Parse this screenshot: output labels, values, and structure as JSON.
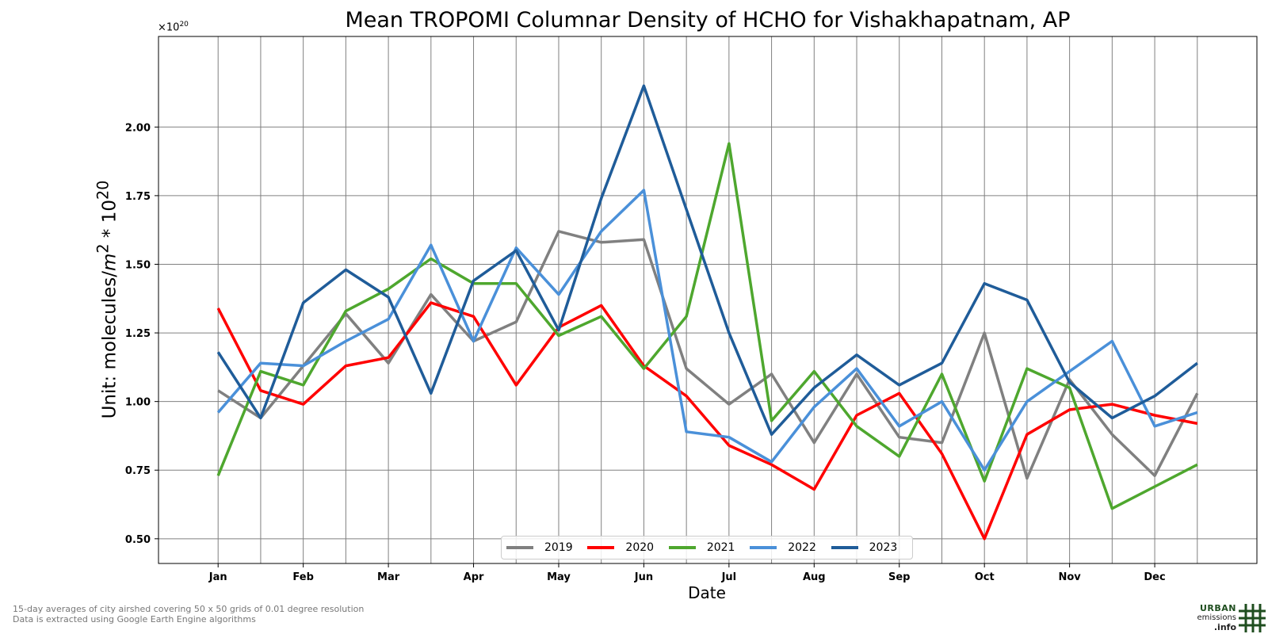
{
  "chart_data": {
    "type": "line",
    "title": "Mean TROPOMI Columnar Density of HCHO for Vishakhapatnam, AP",
    "scale_prefix": "×10",
    "scale_exponent": "20",
    "ylabel_prefix": "Unit: molecules/",
    "ylabel_unit": "m",
    "ylabel_unit_exp": "2",
    "ylabel_suffix": " * 10",
    "ylabel_suffix_exp": "20",
    "xlabel": "Date",
    "x_ticks": [
      "Jan",
      "Feb",
      "Mar",
      "Apr",
      "May",
      "Jun",
      "Jul",
      "Aug",
      "Sep",
      "Oct",
      "Nov",
      "Dec"
    ],
    "y_ticks": [
      "0.50",
      "0.75",
      "1.00",
      "1.25",
      "1.50",
      "1.75",
      "2.00"
    ],
    "ylim": [
      0.41,
      2.33
    ],
    "grid": true,
    "legend_position": "bottom-center",
    "x": [
      1,
      1.5,
      2,
      2.5,
      3,
      3.5,
      4,
      4.5,
      5,
      5.5,
      6,
      6.5,
      7,
      7.5,
      8,
      8.5,
      9,
      9.5,
      10,
      10.5,
      11,
      11.5,
      12,
      12.5
    ],
    "series": [
      {
        "name": "2019",
        "color": "#808080",
        "values": [
          1.04,
          0.94,
          1.13,
          1.32,
          1.14,
          1.39,
          1.22,
          1.29,
          1.62,
          1.58,
          1.59,
          1.12,
          0.99,
          1.1,
          0.85,
          1.1,
          0.87,
          0.85,
          1.25,
          0.72,
          1.08,
          0.88,
          0.73,
          1.03
        ]
      },
      {
        "name": "2020",
        "color": "#ff0000",
        "values": [
          1.34,
          1.04,
          0.99,
          1.13,
          1.16,
          1.36,
          1.31,
          1.06,
          1.27,
          1.35,
          1.13,
          1.02,
          0.84,
          0.77,
          0.68,
          0.95,
          1.03,
          0.81,
          0.5,
          0.88,
          0.97,
          0.99,
          0.95,
          0.92
        ]
      },
      {
        "name": "2021",
        "color": "#4ea72e",
        "values": [
          0.73,
          1.11,
          1.06,
          1.33,
          1.41,
          1.52,
          1.43,
          1.43,
          1.24,
          1.31,
          1.12,
          1.31,
          1.94,
          0.93,
          1.11,
          0.91,
          0.8,
          1.1,
          0.71,
          1.12,
          1.05,
          0.61,
          0.69,
          0.77
        ]
      },
      {
        "name": "2022",
        "color": "#4a90d9",
        "values": [
          0.96,
          1.14,
          1.13,
          1.22,
          1.3,
          1.57,
          1.22,
          1.56,
          1.39,
          1.62,
          1.77,
          0.89,
          0.87,
          0.78,
          0.98,
          1.12,
          0.91,
          1.0,
          0.75,
          1.0,
          1.11,
          1.22,
          0.91,
          0.96
        ]
      },
      {
        "name": "2023",
        "color": "#1f5c99",
        "values": [
          1.18,
          0.94,
          1.36,
          1.48,
          1.38,
          1.03,
          1.44,
          1.55,
          1.26,
          1.74,
          2.15,
          1.7,
          1.25,
          0.88,
          1.05,
          1.17,
          1.06,
          1.14,
          1.43,
          1.37,
          1.07,
          0.94,
          1.02,
          1.14
        ]
      }
    ]
  },
  "footer": {
    "line1": "15-day averages of city airshed covering 50 x 50 grids of 0.01 degree resolution",
    "line2": "Data is extracted using Google Earth Engine algorithms"
  },
  "logo": {
    "line1": "URBAN",
    "line2": "emissions",
    "line3": ".info",
    "color": "#1f4e1f"
  }
}
